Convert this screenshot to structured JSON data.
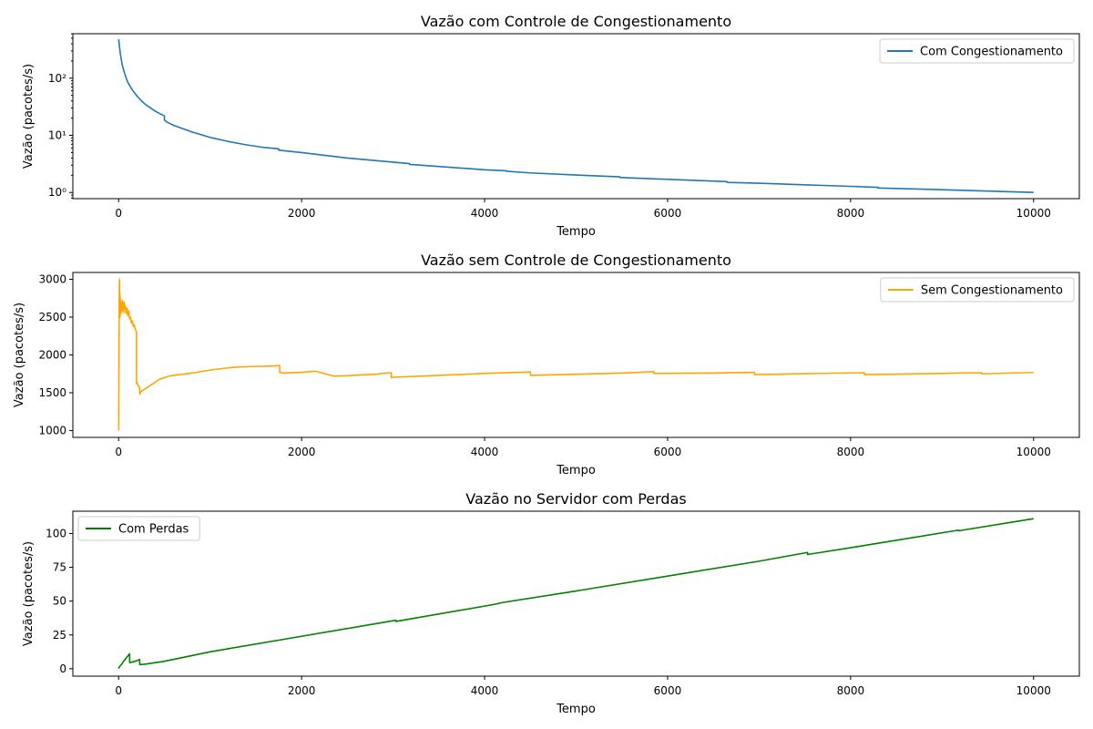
{
  "chart_data": [
    {
      "type": "line",
      "title": "Vazão com Controle de Congestionamento",
      "xlabel": "Tempo",
      "ylabel": "Vazão (pacotes/s)",
      "yscale": "log",
      "xlim": [
        -500,
        10500
      ],
      "ylim": [
        0.78,
        600
      ],
      "xticks": [
        0,
        2000,
        4000,
        6000,
        8000,
        10000
      ],
      "xtick_labels": [
        "0",
        "2000",
        "4000",
        "6000",
        "8000",
        "10000"
      ],
      "yticks": [
        1,
        10,
        100
      ],
      "ytick_labels": [
        "10⁰",
        "10¹",
        "10²"
      ],
      "legend_position": "top-right",
      "series": [
        {
          "name": "Com Congestionamento",
          "color": "#1f77b4",
          "x": [
            1,
            10,
            20,
            40,
            60,
            80,
            100,
            150,
            200,
            250,
            300,
            350,
            400,
            450,
            500,
            501,
            530,
            600,
            800,
            1000,
            1200,
            1400,
            1600,
            1750,
            1751,
            2000,
            2500,
            3000,
            3180,
            3181,
            3500,
            4000,
            4240,
            4241,
            4500,
            5000,
            5480,
            5481,
            6000,
            6650,
            6651,
            7000,
            8000,
            8300,
            8301,
            9000,
            10000
          ],
          "y": [
            480,
            350,
            260,
            170,
            130,
            103,
            85,
            62,
            49,
            40,
            34,
            30,
            26.5,
            24,
            22,
            18.5,
            17,
            15,
            11.5,
            9.2,
            7.8,
            6.8,
            6.1,
            5.8,
            5.5,
            5.0,
            4.0,
            3.4,
            3.2,
            3.1,
            2.85,
            2.5,
            2.4,
            2.35,
            2.2,
            2.02,
            1.88,
            1.83,
            1.7,
            1.55,
            1.5,
            1.45,
            1.28,
            1.23,
            1.2,
            1.12,
            1.0
          ]
        }
      ]
    },
    {
      "type": "line",
      "title": "Vazão sem Controle de Congestionamento",
      "xlabel": "Tempo",
      "ylabel": "Vazão (pacotes/s)",
      "yscale": "linear",
      "xlim": [
        -500,
        10500
      ],
      "ylim": [
        910,
        3090
      ],
      "xticks": [
        0,
        2000,
        4000,
        6000,
        8000,
        10000
      ],
      "xtick_labels": [
        "0",
        "2000",
        "4000",
        "6000",
        "8000",
        "10000"
      ],
      "yticks": [
        1000,
        1500,
        2000,
        2500,
        3000
      ],
      "ytick_labels": [
        "1000",
        "1500",
        "2000",
        "2500",
        "3000"
      ],
      "legend_position": "top-right",
      "series": [
        {
          "name": "Sem Congestionamento",
          "color": "#ffa500",
          "x": [
            1,
            2,
            3,
            4,
            5,
            6,
            8,
            10,
            12,
            14,
            16,
            18,
            20,
            22,
            25,
            28,
            30,
            33,
            36,
            40,
            45,
            50,
            55,
            60,
            65,
            70,
            80,
            90,
            100,
            110,
            120,
            130,
            140,
            150,
            160,
            170,
            180,
            190,
            195,
            196,
            200,
            210,
            220,
            230,
            231,
            240,
            260,
            300,
            350,
            400,
            450,
            500,
            550,
            600,
            700,
            800,
            900,
            1000,
            1100,
            1200,
            1300,
            1400,
            1500,
            1600,
            1700,
            1760,
            1761,
            1800,
            2000,
            2150,
            2200,
            2350,
            2500,
            2800,
            2980,
            2981,
            3000,
            3500,
            4000,
            4500,
            4501,
            5000,
            5500,
            5850,
            5851,
            6500,
            6950,
            6951,
            7500,
            8150,
            8151,
            9000,
            9430,
            9431,
            10000
          ],
          "y": [
            1000,
            1500,
            2300,
            1800,
            2500,
            2700,
            2900,
            3000,
            2650,
            2800,
            2500,
            2750,
            2600,
            2700,
            2550,
            2680,
            2620,
            2700,
            2580,
            2720,
            2600,
            2680,
            2560,
            2700,
            2620,
            2660,
            2550,
            2620,
            2520,
            2580,
            2480,
            2500,
            2420,
            2450,
            2380,
            2400,
            2350,
            2320,
            2300,
            1620,
            1640,
            1600,
            1590,
            1560,
            1480,
            1510,
            1530,
            1560,
            1600,
            1640,
            1680,
            1700,
            1720,
            1730,
            1745,
            1760,
            1780,
            1800,
            1815,
            1830,
            1840,
            1845,
            1848,
            1850,
            1855,
            1860,
            1770,
            1760,
            1770,
            1785,
            1770,
            1720,
            1725,
            1745,
            1765,
            1700,
            1705,
            1730,
            1755,
            1775,
            1730,
            1745,
            1760,
            1780,
            1755,
            1760,
            1770,
            1740,
            1752,
            1765,
            1740,
            1755,
            1765,
            1750,
            1768
          ]
        }
      ]
    },
    {
      "type": "line",
      "title": "Vazão no Servidor com Perdas",
      "xlabel": "Tempo",
      "ylabel": "Vazão (pacotes/s)",
      "yscale": "linear",
      "xlim": [
        -500,
        10500
      ],
      "ylim": [
        -5.5,
        116.5
      ],
      "xticks": [
        0,
        2000,
        4000,
        6000,
        8000,
        10000
      ],
      "xtick_labels": [
        "0",
        "2000",
        "4000",
        "6000",
        "8000",
        "10000"
      ],
      "yticks": [
        0,
        25,
        50,
        75,
        100
      ],
      "ytick_labels": [
        "0",
        "25",
        "50",
        "75",
        "100"
      ],
      "legend_position": "top-left",
      "series": [
        {
          "name": "Com Perdas",
          "color": "#008000",
          "x": [
            0,
            10,
            30,
            60,
            90,
            120,
            121,
            150,
            180,
            220,
            230,
            231,
            300,
            500,
            1000,
            2000,
            3000,
            3030,
            3031,
            4100,
            4200,
            5000,
            6000,
            7000,
            7530,
            7531,
            8000,
            9180,
            9181,
            10000
          ],
          "y": [
            0,
            1.5,
            3,
            6,
            8.5,
            11,
            4.5,
            5,
            5.5,
            6.5,
            6.8,
            3,
            3.5,
            5.5,
            12.5,
            24,
            35.5,
            35.8,
            35,
            47.5,
            49,
            57.5,
            68.5,
            79.5,
            86,
            84.5,
            89.5,
            102.5,
            102,
            111
          ]
        }
      ]
    }
  ]
}
